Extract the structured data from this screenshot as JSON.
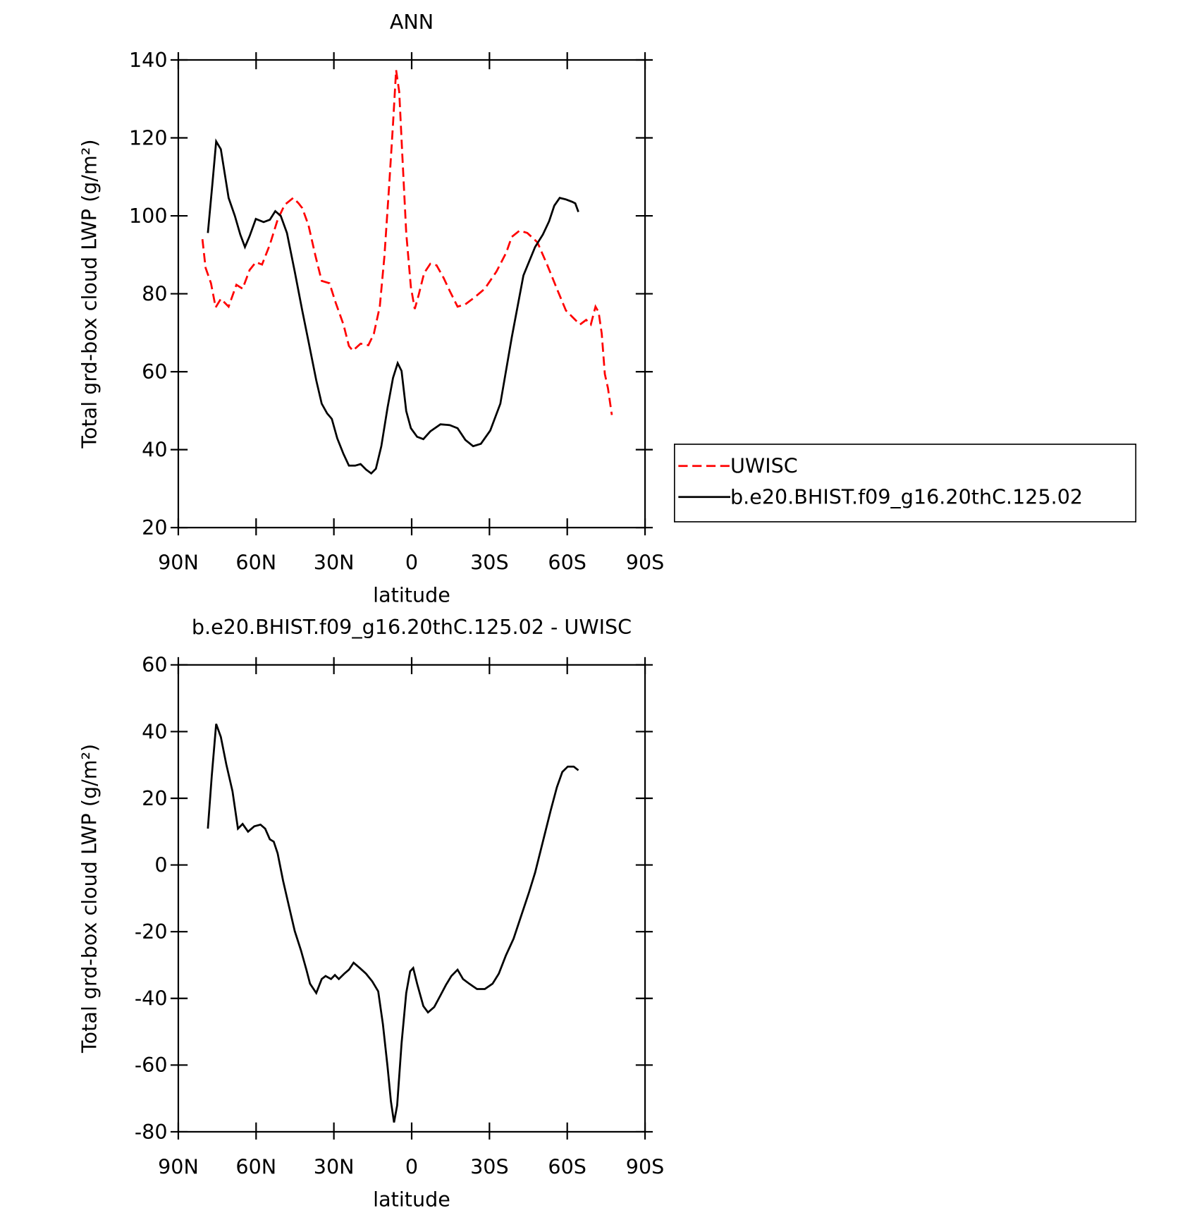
{
  "chart_data": [
    {
      "type": "line",
      "title": "ANN",
      "x_label": "latitude",
      "y_label": "Total grd-box cloud LWP (g/m²)",
      "xlim": [
        90,
        -90
      ],
      "xticks": [
        {
          "value": 90,
          "label": "90N"
        },
        {
          "value": 60,
          "label": "60N"
        },
        {
          "value": 30,
          "label": "30N"
        },
        0,
        {
          "value": -30,
          "label": "30S"
        },
        {
          "value": -60,
          "label": "60S"
        },
        {
          "value": -90,
          "label": "90S"
        }
      ],
      "ylim": [
        20,
        140
      ],
      "yticks": [
        20,
        40,
        60,
        80,
        100,
        120,
        140
      ],
      "legend": "right",
      "series": [
        {
          "name": "UWISC",
          "color": "#ff0000",
          "line_style": "dashed",
          "x": [
            80.7,
            79.5,
            77.4,
            75.6,
            73.6,
            70.6,
            67.6,
            65.2,
            62.5,
            60.1,
            57.7,
            54.7,
            51.7,
            49.0,
            45.7,
            43.6,
            42.2,
            39.8,
            37.1,
            34.7,
            31.7,
            29.3,
            26.3,
            24.2,
            22.7,
            19.7,
            16.7,
            14.6,
            12.3,
            10.5,
            8.7,
            7.2,
            6.0,
            4.8,
            3.6,
            2.1,
            0.3,
            -1.2,
            -2.7,
            -4.8,
            -7.2,
            -9.6,
            -12.3,
            -14.7,
            -17.7,
            -20.7,
            -24.3,
            -28.2,
            -32.7,
            -36.5,
            -38.6,
            -41.6,
            -44.6,
            -48.5,
            -52.1,
            -56.0,
            -59.5,
            -62.5,
            -64.9,
            -67.3,
            -69.1,
            -70.9,
            -72.1,
            -73.3,
            -74.5,
            -75.7,
            -77.2
          ],
          "values": [
            94.0,
            86.7,
            82.7,
            76.5,
            78.7,
            76.7,
            82.3,
            81.3,
            86.1,
            88.1,
            87.5,
            92.6,
            99.0,
            102.8,
            104.6,
            103.2,
            102.0,
            97.6,
            89.7,
            83.3,
            82.7,
            77.7,
            72.1,
            66.6,
            65.4,
            67.2,
            66.8,
            69.7,
            76.7,
            89.7,
            107.6,
            123.5,
            137.4,
            131.8,
            115.5,
            95.6,
            81.7,
            76.1,
            79.7,
            85.3,
            87.7,
            87.3,
            84.1,
            80.7,
            76.7,
            77.3,
            79.1,
            81.3,
            85.7,
            90.6,
            94.6,
            96.2,
            95.6,
            93.2,
            87.7,
            81.3,
            75.7,
            73.7,
            72.1,
            73.3,
            72.1,
            76.7,
            75.3,
            69.8,
            59.4,
            55.8,
            48.9
          ]
        },
        {
          "name": "b.e20.BHIST.f09_g16.20thC.125.02",
          "color": "#000000",
          "line_style": "solid",
          "x": [
            78.6,
            76.8,
            75.4,
            73.6,
            70.6,
            68.2,
            66.1,
            64.3,
            62.5,
            60.1,
            57.1,
            54.7,
            52.6,
            50.5,
            48.1,
            45.1,
            42.2,
            39.8,
            36.8,
            34.7,
            32.6,
            30.8,
            28.7,
            26.3,
            24.2,
            21.8,
            19.7,
            17.6,
            15.6,
            13.8,
            11.7,
            9.3,
            7.2,
            5.4,
            3.9,
            2.1,
            0.3,
            -2.1,
            -4.5,
            -7.2,
            -11.1,
            -14.7,
            -17.7,
            -20.7,
            -23.7,
            -26.7,
            -30.3,
            -34.2,
            -38.6,
            -43.1,
            -47.6,
            -50.6,
            -53.0,
            -55.0,
            -57.1,
            -59.5,
            -61.9,
            -63.1,
            -64.3
          ],
          "values": [
            95.6,
            108.6,
            119.1,
            117.1,
            104.6,
            100.0,
            95.2,
            92.0,
            94.8,
            99.2,
            98.4,
            99.0,
            101.2,
            100.0,
            95.6,
            85.7,
            75.7,
            67.8,
            57.8,
            51.8,
            49.3,
            47.9,
            42.9,
            38.9,
            35.9,
            35.9,
            36.3,
            34.9,
            33.9,
            35.1,
            40.9,
            50.8,
            58.4,
            62.2,
            60.2,
            49.9,
            45.5,
            43.3,
            42.7,
            44.7,
            46.5,
            46.3,
            45.5,
            42.5,
            40.9,
            41.5,
            44.9,
            51.8,
            68.8,
            84.7,
            92.0,
            95.2,
            98.6,
            102.6,
            104.6,
            104.2,
            103.6,
            103.2,
            101.0
          ]
        }
      ]
    },
    {
      "type": "line",
      "title": "b.e20.BHIST.f09_g16.20thC.125.02 - UWISC",
      "x_label": "latitude",
      "y_label": "Total grd-box cloud LWP (g/m²)",
      "xlim": [
        90,
        -90
      ],
      "xticks": [
        {
          "value": 90,
          "label": "90N"
        },
        {
          "value": 60,
          "label": "60N"
        },
        {
          "value": 30,
          "label": "30N"
        },
        0,
        {
          "value": -30,
          "label": "30S"
        },
        {
          "value": -60,
          "label": "60S"
        },
        {
          "value": -90,
          "label": "90S"
        }
      ],
      "ylim": [
        -80,
        60
      ],
      "yticks": [
        -80,
        -60,
        -40,
        -20,
        0,
        20,
        40,
        60
      ],
      "series": [
        {
          "color": "#000000",
          "line_style": "solid",
          "x": [
            78.6,
            77.1,
            75.4,
            73.6,
            71.5,
            69.1,
            67.0,
            65.2,
            63.1,
            60.7,
            58.3,
            56.5,
            54.7,
            53.2,
            51.7,
            49.6,
            47.2,
            45.1,
            42.7,
            40.6,
            39.2,
            36.8,
            34.7,
            33.2,
            31.1,
            29.6,
            28.1,
            26.0,
            24.2,
            22.4,
            20.0,
            17.6,
            15.2,
            12.9,
            11.1,
            9.3,
            8.0,
            6.8,
            5.6,
            3.9,
            2.1,
            0.6,
            -0.6,
            -2.1,
            -4.5,
            -6.3,
            -8.7,
            -11.1,
            -13.2,
            -15.3,
            -17.7,
            -19.8,
            -22.2,
            -25.2,
            -28.2,
            -31.2,
            -33.6,
            -36.3,
            -39.3,
            -42.3,
            -45.3,
            -47.6,
            -50.6,
            -53.6,
            -56.0,
            -58.1,
            -60.2,
            -62.5,
            -64.3
          ],
          "values": [
            10.9,
            26.7,
            42.3,
            38.4,
            30.2,
            22.1,
            10.9,
            12.3,
            10.0,
            11.6,
            12.1,
            10.9,
            7.7,
            7.0,
            3.5,
            -4.7,
            -12.8,
            -19.8,
            -25.6,
            -31.4,
            -35.6,
            -38.4,
            -34.2,
            -33.3,
            -34.2,
            -33.0,
            -34.2,
            -32.6,
            -31.4,
            -29.3,
            -30.9,
            -32.6,
            -34.9,
            -37.9,
            -47.7,
            -60.5,
            -70.9,
            -77.2,
            -72.1,
            -53.5,
            -38.4,
            -31.9,
            -30.9,
            -35.6,
            -42.3,
            -44.2,
            -42.6,
            -39.1,
            -36.0,
            -33.3,
            -31.4,
            -34.2,
            -35.6,
            -37.2,
            -37.2,
            -35.6,
            -32.6,
            -27.2,
            -22.1,
            -15.1,
            -8.1,
            -2.3,
            7.0,
            16.3,
            23.3,
            27.9,
            29.5,
            29.5,
            28.4
          ]
        }
      ]
    }
  ]
}
